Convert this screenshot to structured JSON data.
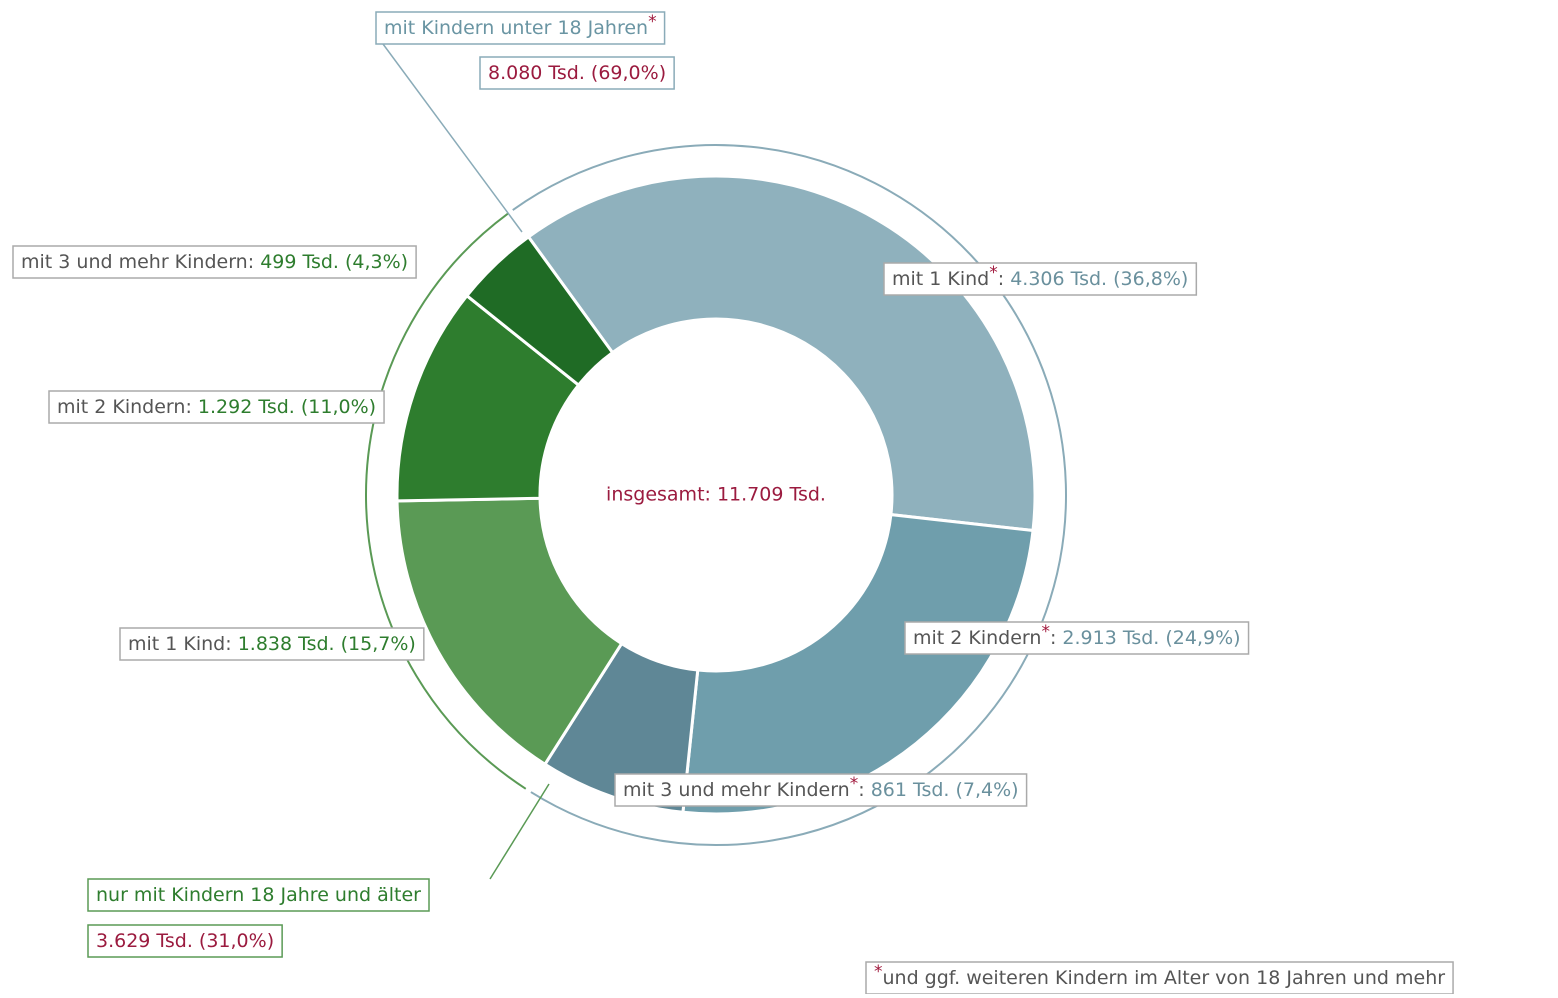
{
  "chart_data": {
    "type": "donut",
    "center_label": "insgesamt: 11.709 Tsd.",
    "categories": [
      "mit 1 Kind",
      "mit 2 Kindern",
      "mit 3 und mehr Kindern",
      "mit 1 Kind",
      "mit 2 Kindern",
      "mit 3 und mehr Kindern"
    ],
    "values": [
      4306,
      2913,
      861,
      1838,
      1292,
      499
    ],
    "value_labels": [
      "4.306 Tsd. (36,8%)",
      "2.913 Tsd. (24,9%)",
      "861 Tsd. (7,4%)",
      "1.838 Tsd. (15,7%)",
      "1.292 Tsd. (11,0%)",
      "499 Tsd. (4,3%)"
    ],
    "colors": [
      "#8fb1bd",
      "#6f9eac",
      "#5f8796",
      "#5a9a55",
      "#2e7d2e",
      "#1f6b25"
    ],
    "text_colors": [
      "#6a909d",
      "#6a909d",
      "#6a909d",
      "#2e7d2e",
      "#2e7d2e",
      "#2e7d2e"
    ],
    "starred": [
      true,
      true,
      true,
      false,
      false,
      false
    ],
    "separator": ": ",
    "groups": [
      {
        "name": "mit Kindern unter 18 Jahren",
        "value": 8080,
        "value_label": "8.080 Tsd. (69,0%)",
        "color": "#8aabb8",
        "text_color": "#6a95a3",
        "starred": true
      },
      {
        "name": "nur mit Kindern 18 Jahre und älter",
        "value": 3629,
        "value_label": "3.629 Tsd. (31,0%)",
        "color": "#5a9a55",
        "text_color": "#2e7d2e",
        "starred": false
      }
    ],
    "footnote": {
      "marker": "*",
      "text": "und ggf. weiteren Kindern im Alter von 18 Jahren und mehr"
    }
  }
}
